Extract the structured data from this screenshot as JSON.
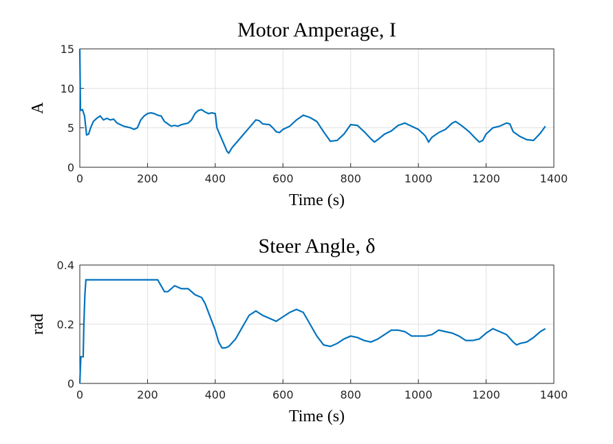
{
  "chart_data": [
    {
      "type": "line",
      "title": "Motor Amperage, I",
      "xlabel": "Time (s)",
      "ylabel": "A",
      "color": "#0072bd",
      "grid": true,
      "xlim": [
        0,
        1400
      ],
      "xticks": [
        0,
        200,
        400,
        600,
        800,
        1000,
        1200,
        1400
      ],
      "ylim": [
        0,
        15
      ],
      "yticks": [
        0,
        5,
        10,
        15
      ],
      "x": [
        0,
        2,
        8,
        14,
        20,
        26,
        32,
        40,
        50,
        60,
        70,
        80,
        90,
        100,
        110,
        120,
        130,
        140,
        150,
        160,
        170,
        180,
        190,
        200,
        210,
        220,
        230,
        240,
        250,
        260,
        270,
        280,
        290,
        300,
        310,
        320,
        330,
        340,
        350,
        360,
        370,
        380,
        390,
        400,
        405,
        420,
        435,
        440,
        450,
        460,
        480,
        500,
        520,
        530,
        540,
        560,
        570,
        580,
        590,
        600,
        620,
        640,
        660,
        680,
        700,
        720,
        740,
        760,
        780,
        800,
        820,
        840,
        860,
        870,
        880,
        900,
        920,
        940,
        960,
        980,
        1000,
        1020,
        1030,
        1040,
        1060,
        1080,
        1100,
        1110,
        1130,
        1150,
        1170,
        1180,
        1190,
        1200,
        1220,
        1240,
        1260,
        1270,
        1280,
        1300,
        1320,
        1340,
        1360,
        1375
      ],
      "values": [
        15,
        7.2,
        7.3,
        6.5,
        4.1,
        4.2,
        5.0,
        5.8,
        6.2,
        6.5,
        6.0,
        6.2,
        6.0,
        6.1,
        5.6,
        5.4,
        5.2,
        5.1,
        5.0,
        4.8,
        5.0,
        6.0,
        6.5,
        6.8,
        6.9,
        6.8,
        6.6,
        6.5,
        5.8,
        5.5,
        5.2,
        5.3,
        5.2,
        5.4,
        5.5,
        5.6,
        6.0,
        6.8,
        7.2,
        7.3,
        7.0,
        6.8,
        6.9,
        6.8,
        5.0,
        3.5,
        2.0,
        1.8,
        2.5,
        3.0,
        4.0,
        5.0,
        6.0,
        5.9,
        5.5,
        5.4,
        5.0,
        4.5,
        4.4,
        4.8,
        5.2,
        6.0,
        6.6,
        6.3,
        5.8,
        4.5,
        3.3,
        3.4,
        4.2,
        5.4,
        5.3,
        4.5,
        3.6,
        3.2,
        3.5,
        4.2,
        4.6,
        5.3,
        5.6,
        5.2,
        4.8,
        4.0,
        3.2,
        3.8,
        4.4,
        4.8,
        5.6,
        5.8,
        5.2,
        4.5,
        3.6,
        3.2,
        3.4,
        4.2,
        5.0,
        5.2,
        5.6,
        5.5,
        4.5,
        3.9,
        3.5,
        3.4,
        4.3,
        5.2
      ]
    },
    {
      "type": "line",
      "title": "Steer Angle, δ",
      "xlabel": "Time (s)",
      "ylabel": "rad",
      "color": "#0072bd",
      "grid": true,
      "xlim": [
        0,
        1400
      ],
      "xticks": [
        0,
        200,
        400,
        600,
        800,
        1000,
        1200,
        1400
      ],
      "ylim": [
        0,
        0.4
      ],
      "yticks": [
        0,
        0.2,
        0.4
      ],
      "x": [
        0,
        3,
        10,
        12,
        15,
        18,
        230,
        240,
        250,
        260,
        270,
        280,
        300,
        320,
        340,
        360,
        370,
        380,
        390,
        400,
        410,
        420,
        430,
        440,
        460,
        480,
        500,
        520,
        540,
        560,
        580,
        600,
        620,
        640,
        660,
        680,
        700,
        720,
        740,
        760,
        780,
        800,
        820,
        840,
        860,
        880,
        900,
        920,
        940,
        960,
        980,
        1000,
        1020,
        1040,
        1060,
        1080,
        1100,
        1120,
        1140,
        1160,
        1180,
        1200,
        1220,
        1240,
        1260,
        1280,
        1290,
        1300,
        1320,
        1340,
        1360,
        1375
      ],
      "values": [
        0,
        0.09,
        0.09,
        0.2,
        0.3,
        0.35,
        0.35,
        0.33,
        0.31,
        0.31,
        0.32,
        0.33,
        0.32,
        0.32,
        0.3,
        0.29,
        0.27,
        0.24,
        0.21,
        0.18,
        0.14,
        0.12,
        0.12,
        0.125,
        0.15,
        0.19,
        0.23,
        0.245,
        0.23,
        0.22,
        0.21,
        0.225,
        0.24,
        0.25,
        0.24,
        0.2,
        0.16,
        0.13,
        0.125,
        0.135,
        0.15,
        0.16,
        0.155,
        0.145,
        0.14,
        0.15,
        0.165,
        0.18,
        0.18,
        0.175,
        0.16,
        0.16,
        0.16,
        0.165,
        0.18,
        0.175,
        0.17,
        0.16,
        0.145,
        0.145,
        0.15,
        0.17,
        0.185,
        0.175,
        0.165,
        0.14,
        0.13,
        0.135,
        0.14,
        0.155,
        0.175,
        0.185
      ]
    }
  ]
}
